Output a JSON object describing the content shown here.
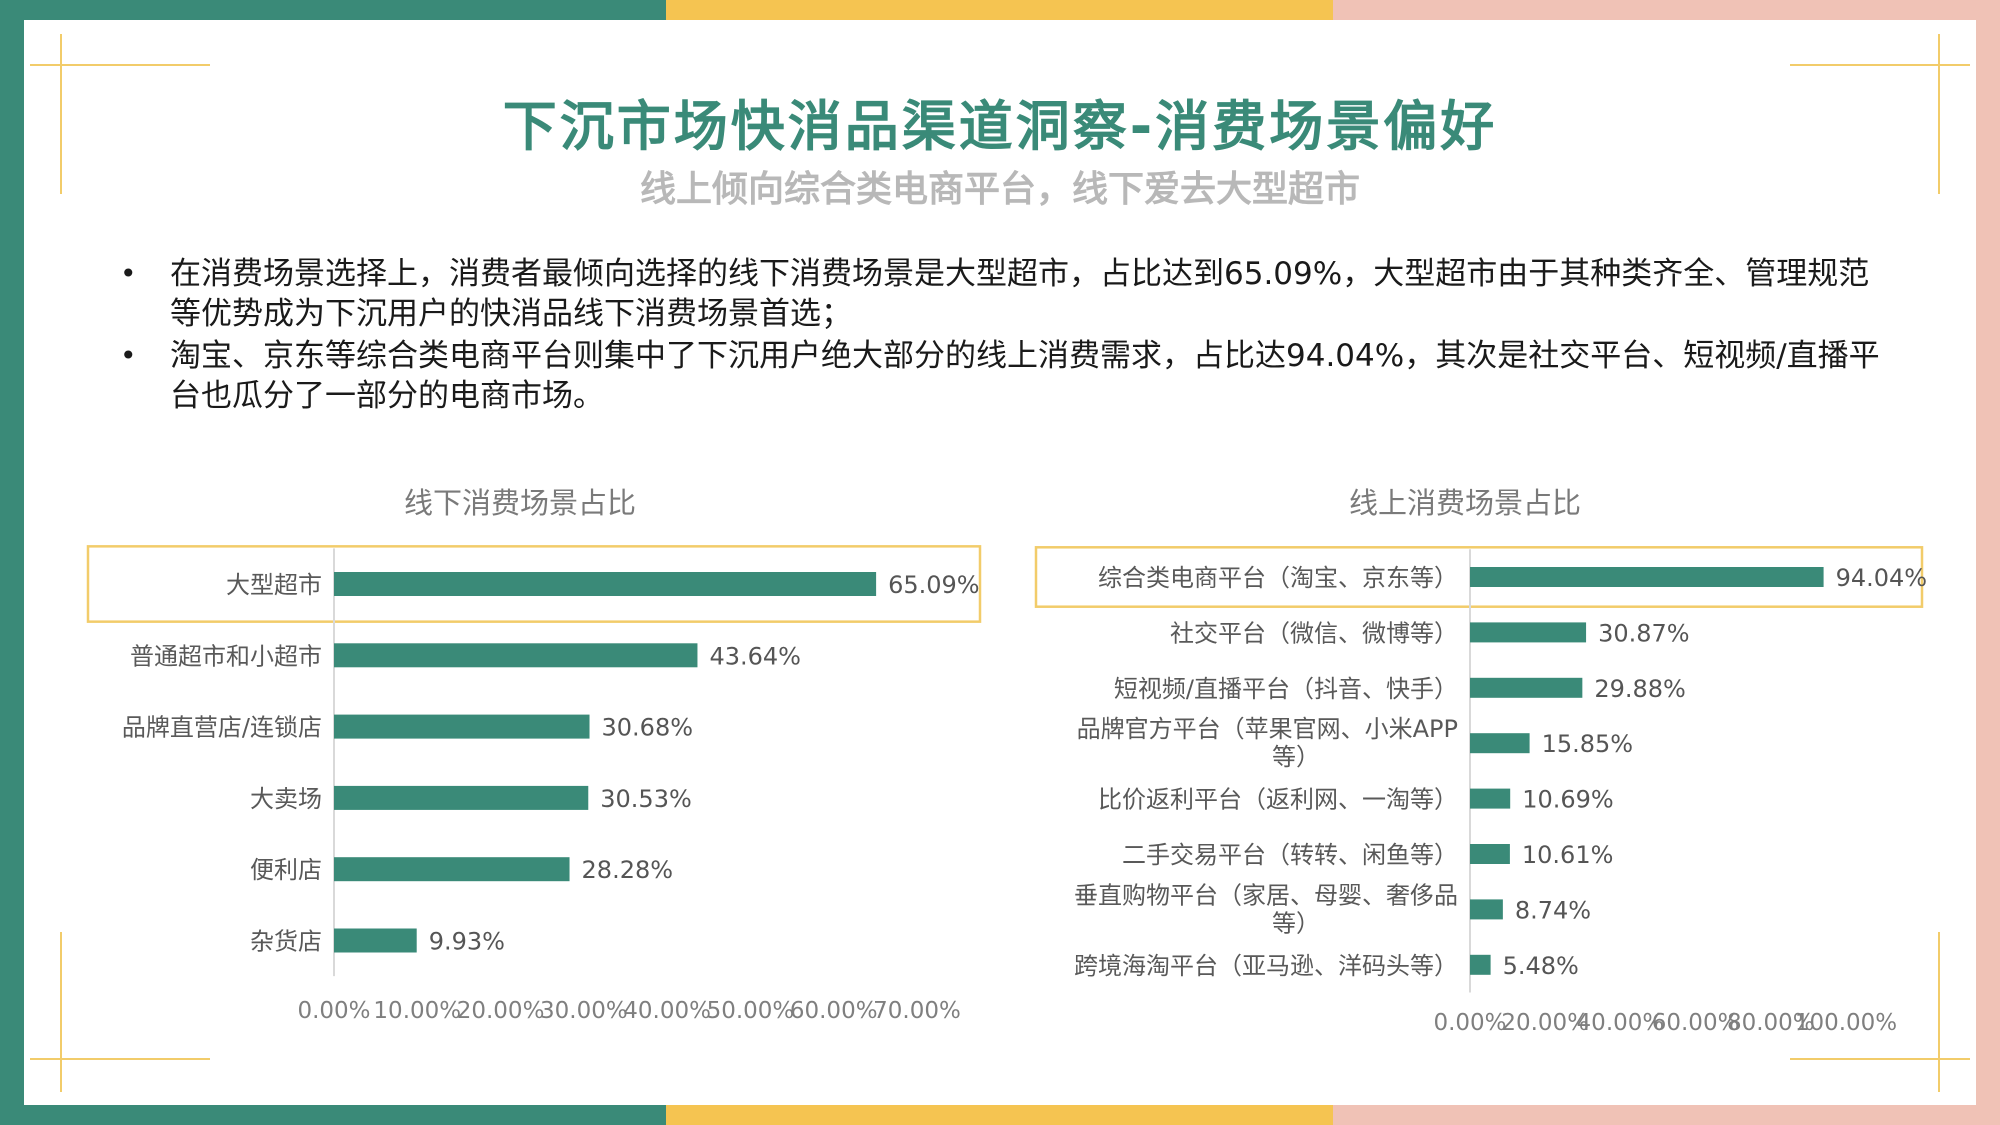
{
  "slide": {
    "title": "下沉市场快消品渠道洞察-消费场景偏好",
    "subtitle": "线上倾向综合类电商平台，线下爱去大型超市",
    "bullets": [
      "在消费场景选择上，消费者最倾向选择的线下消费场景是大型超市，占比达到65.09%，大型超市由于其种类齐全、管理规范等优势成为下沉用户的快消品线下消费场景首选；",
      "淘宝、京东等综合类电商平台则集中了下沉用户绝大部分的线上消费需求，占比达94.04%，其次是社交平台、短视频/直播平台也瓜分了一部分的电商市场。"
    ],
    "bullet_glyph": "•"
  },
  "colors": {
    "accent_green": "#3a8a78",
    "accent_yellow": "#f5c451",
    "accent_pink": "#f0c2b6",
    "bar": "#3a8a78",
    "highlight_border": "#f2cc6a"
  },
  "chart_data": [
    {
      "type": "bar",
      "orientation": "horizontal",
      "title": "线下消费场景占比",
      "categories": [
        "大型超市",
        "普通超市和小超市",
        "品牌直营店/连锁店",
        "大卖场",
        "便利店",
        "杂货店"
      ],
      "values": [
        65.09,
        43.64,
        30.68,
        30.53,
        28.28,
        9.93
      ],
      "value_labels": [
        "65.09%",
        "43.64%",
        "30.68%",
        "30.53%",
        "28.28%",
        "9.93%"
      ],
      "xlim": [
        0,
        70
      ],
      "ticks": [
        0,
        10,
        20,
        30,
        40,
        50,
        60,
        70
      ],
      "tick_labels": [
        "0.00%",
        "10.00%",
        "20.00%",
        "30.00%",
        "40.00%",
        "50.00%",
        "60.00%",
        "70.00%"
      ],
      "highlighted_category": "大型超市",
      "grid": false
    },
    {
      "type": "bar",
      "orientation": "horizontal",
      "title": "线上消费场景占比",
      "categories": [
        [
          "综合类电商平台（淘宝、京东等）"
        ],
        [
          "社交平台（微信、微博等）"
        ],
        [
          "短视频/直播平台（抖音、快手）"
        ],
        [
          "品牌官方平台（苹果官网、小米APP",
          "等）"
        ],
        [
          "比价返利平台（返利网、一淘等）"
        ],
        [
          "二手交易平台（转转、闲鱼等）"
        ],
        [
          "垂直购物平台（家居、母婴、奢侈品",
          "等）"
        ],
        [
          "跨境海淘平台（亚马逊、洋码头等）"
        ]
      ],
      "values": [
        94.04,
        30.87,
        29.88,
        15.85,
        10.69,
        10.61,
        8.74,
        5.48
      ],
      "value_labels": [
        "94.04%",
        "30.87%",
        "29.88%",
        "15.85%",
        "10.69%",
        "10.61%",
        "8.74%",
        "5.48%"
      ],
      "xlim": [
        0,
        100
      ],
      "ticks": [
        0,
        20,
        40,
        60,
        80,
        100
      ],
      "tick_labels": [
        "0.00%",
        "20.00%",
        "40.00%",
        "60.00%",
        "80.00%",
        "100.00%"
      ],
      "highlighted_category": "综合类电商平台（淘宝、京东等）",
      "grid": false
    }
  ]
}
